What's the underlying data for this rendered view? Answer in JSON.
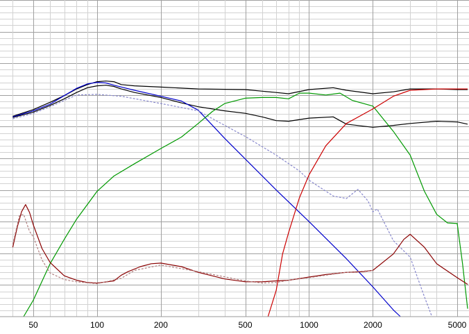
{
  "chart_data": {
    "type": "line",
    "title": "",
    "xlabel": "",
    "ylabel": "",
    "x_scale": "log",
    "xlim": [
      40,
      5600
    ],
    "ylim": [
      0,
      100
    ],
    "grid": true,
    "xticks": [
      50,
      100,
      200,
      500,
      1000,
      2000,
      5000
    ],
    "xtick_labels": [
      "50",
      "100",
      "200",
      "500",
      "1000",
      "2000",
      "5000"
    ],
    "series": [
      {
        "color": "#000000",
        "style": "solid",
        "x": [
          40,
          50,
          60,
          70,
          80,
          90,
          100,
          110,
          120,
          130,
          150,
          200,
          300,
          500,
          700,
          800,
          1000,
          1300,
          1500,
          2000,
          2500,
          3000,
          4000,
          5000,
          5600
        ],
        "y": [
          63.3,
          65.4,
          67.7,
          69.8,
          71.9,
          73.3,
          74.2,
          74.4,
          74.2,
          73.3,
          72.9,
          72.5,
          71.9,
          71.7,
          70.8,
          70.4,
          71.7,
          72.3,
          71.5,
          70.4,
          71.0,
          71.9,
          71.9,
          71.7,
          71.7
        ]
      },
      {
        "color": "#000000",
        "style": "solid",
        "x": [
          40,
          50,
          60,
          70,
          80,
          90,
          100,
          110,
          120,
          130,
          150,
          200,
          250,
          300,
          400,
          500,
          600,
          700,
          800,
          1000,
          1300,
          1500,
          2000,
          2500,
          3000,
          4000,
          5000,
          5600
        ],
        "y": [
          62.9,
          64.6,
          66.7,
          68.8,
          70.8,
          72.3,
          72.9,
          73.1,
          72.7,
          71.9,
          70.8,
          69.2,
          67.5,
          66.3,
          65.0,
          64.2,
          63.1,
          61.9,
          61.7,
          62.7,
          63.1,
          60.8,
          59.8,
          60.4,
          61.0,
          61.7,
          61.5,
          60.8
        ]
      },
      {
        "color": "#0000cc",
        "style": "solid",
        "x": [
          40,
          50,
          60,
          70,
          80,
          90,
          100,
          110,
          120,
          150,
          200,
          250,
          300,
          400,
          500,
          700,
          1000,
          1500,
          2000,
          2500,
          2700
        ],
        "y": [
          63.1,
          65.0,
          67.1,
          69.8,
          72.1,
          73.5,
          74.0,
          73.8,
          73.1,
          71.5,
          69.6,
          68.1,
          65.2,
          56.3,
          49.8,
          40.0,
          30.0,
          18.3,
          9.4,
          2.1,
          0.0
        ]
      },
      {
        "color": "#8888cc",
        "style": "dashed",
        "x": [
          40,
          50,
          60,
          70,
          80,
          100,
          130,
          200,
          300,
          400,
          500,
          700,
          900,
          1000,
          1300,
          1500,
          1700,
          1900,
          2000,
          2100,
          2500,
          3000,
          3500,
          3800
        ],
        "y": [
          62.5,
          64.2,
          66.3,
          68.3,
          70.0,
          70.2,
          69.6,
          67.3,
          65.0,
          60.4,
          56.9,
          51.0,
          46.0,
          43.1,
          38.1,
          37.3,
          40.2,
          36.5,
          33.1,
          34.0,
          24.0,
          18.8,
          6.3,
          0.0
        ]
      },
      {
        "color": "#009900",
        "style": "solid",
        "x": [
          45,
          50,
          60,
          70,
          80,
          100,
          120,
          150,
          200,
          250,
          300,
          350,
          400,
          500,
          600,
          700,
          800,
          900,
          1000,
          1200,
          1400,
          1600,
          2000,
          2500,
          3000,
          3500,
          4000,
          4500,
          5000,
          5300,
          5600
        ],
        "y": [
          0.0,
          5.2,
          16.7,
          24.4,
          30.8,
          39.6,
          44.4,
          48.3,
          53.1,
          56.7,
          61.0,
          64.8,
          67.3,
          69.0,
          69.2,
          69.2,
          68.8,
          70.6,
          70.6,
          70.0,
          70.6,
          68.3,
          66.5,
          58.5,
          51.0,
          39.6,
          32.3,
          29.6,
          29.4,
          16.7,
          2.5
        ]
      },
      {
        "color": "#8a0000",
        "style": "solid",
        "x": [
          40,
          42,
          44,
          46,
          48,
          50,
          55,
          60,
          70,
          80,
          90,
          100,
          120,
          130,
          140,
          160,
          180,
          200,
          250,
          300,
          400,
          500,
          600,
          700,
          800,
          1000,
          1200,
          1500,
          1800,
          2000,
          2500,
          2800,
          3000,
          3500,
          4000,
          5000,
          5600
        ],
        "y": [
          21.9,
          28.3,
          33.1,
          35.4,
          32.9,
          29.0,
          21.5,
          17.1,
          12.9,
          11.5,
          10.8,
          10.6,
          11.3,
          13.1,
          14.2,
          15.8,
          16.7,
          16.9,
          15.8,
          14.0,
          11.9,
          11.0,
          11.0,
          11.3,
          11.5,
          12.5,
          13.3,
          14.0,
          14.2,
          14.6,
          19.8,
          24.4,
          26.0,
          21.9,
          16.7,
          12.3,
          10.2
        ]
      },
      {
        "color": "#b08080",
        "style": "dashed",
        "x": [
          40,
          43,
          45,
          48,
          50,
          55,
          60,
          70,
          80,
          100,
          130,
          150,
          200,
          300,
          500,
          600,
          700,
          800,
          1000,
          1200,
          1500,
          2000
        ],
        "y": [
          22.9,
          31.9,
          32.3,
          26.9,
          25.2,
          17.9,
          13.8,
          11.7,
          11.0,
          10.4,
          12.1,
          14.6,
          16.3,
          14.2,
          11.3,
          10.6,
          10.8,
          11.5,
          12.3,
          13.1,
          14.0,
          14.6
        ]
      },
      {
        "color": "#cc0000",
        "style": "solid",
        "x": [
          640,
          700,
          750,
          800,
          900,
          1000,
          1200,
          1500,
          2000,
          2500,
          3000,
          4000,
          5000,
          5600
        ],
        "y": [
          0.0,
          8.3,
          19.8,
          26.5,
          37.5,
          44.8,
          54.0,
          61.0,
          65.6,
          69.6,
          71.5,
          71.9,
          71.9,
          71.9
        ]
      }
    ]
  }
}
